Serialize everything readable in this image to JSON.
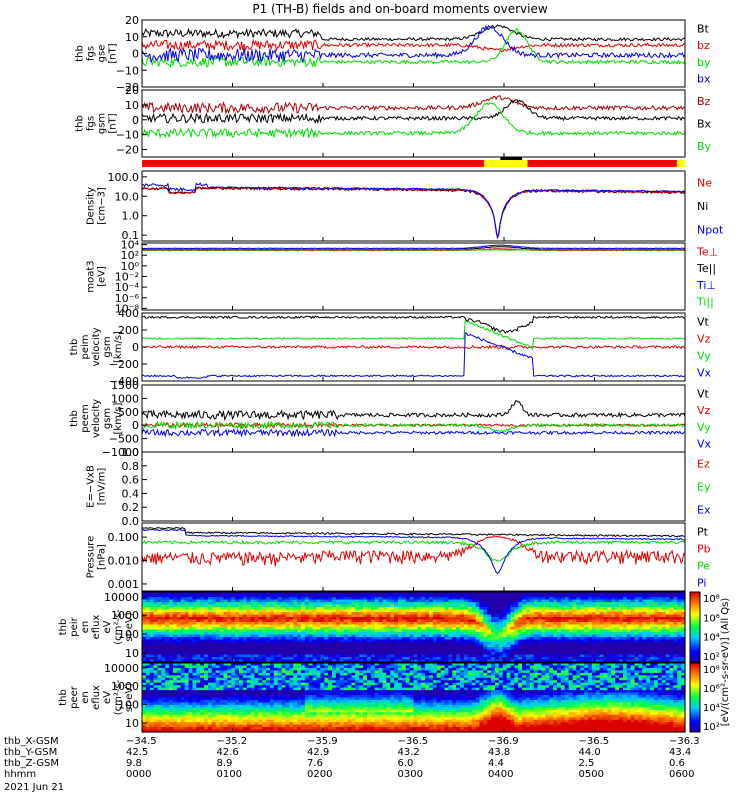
{
  "title": "P1 (TH-B) fields and on-board moments overview",
  "colors": {
    "black": "#000000",
    "red": "#e00000",
    "darkred": "#aa0000",
    "green": "#00dd00",
    "blue": "#0000ee",
    "yellow": "#ffff00"
  },
  "chart_data": [
    {
      "type": "line",
      "id": "fgs1",
      "ylabel_lines": [
        "thb",
        "fgs",
        "gse",
        "[nT]"
      ],
      "ylim": [
        -20,
        20
      ],
      "ticks": [
        "20",
        "10",
        "0",
        "−10",
        "−20"
      ],
      "series": [
        {
          "name": "Bt",
          "color": "#000000"
        },
        {
          "name": "bz",
          "color": "#e00000"
        },
        {
          "name": "by",
          "color": "#00dd00"
        },
        {
          "name": "bx",
          "color": "#0000ee"
        }
      ]
    },
    {
      "type": "line",
      "id": "fgs2",
      "ylabel_lines": [
        "thb",
        "fgs",
        "gsm",
        "[nT]"
      ],
      "ylim": [
        -25,
        20
      ],
      "ticks": [
        "20",
        "10",
        "0",
        "−10",
        "−20"
      ],
      "series": [
        {
          "name": "Bz",
          "color": "#aa0000"
        },
        {
          "name": "Bx",
          "color": "#000000"
        },
        {
          "name": "By",
          "color": "#00dd00"
        }
      ]
    },
    {
      "type": "line",
      "id": "density",
      "ylabel_lines": [
        "Density",
        "[cm−3]"
      ],
      "ylim": [
        0.05,
        200
      ],
      "log": true,
      "ticks": [
        "100.0",
        "10.0",
        "1.0",
        "0.1"
      ],
      "series": [
        {
          "name": "Ne",
          "color": "#e00000"
        },
        {
          "name": "Ni",
          "color": "#000000"
        },
        {
          "name": "Npot",
          "color": "#0000ee"
        }
      ]
    },
    {
      "type": "line",
      "id": "temp",
      "ylabel_lines": [
        "moat3",
        "[eV]"
      ],
      "log": true,
      "ticks": [
        "10⁴",
        "10²",
        "10⁰",
        "10⁻²",
        "10⁻⁴",
        "10⁻⁶",
        "10⁻⁸"
      ],
      "series": [
        {
          "name": "Te⊥",
          "color": "#e00000"
        },
        {
          "name": "Te||",
          "color": "#000000"
        },
        {
          "name": "Ti⊥",
          "color": "#0000ee"
        },
        {
          "name": "Ti||",
          "color": "#00dd00"
        }
      ]
    },
    {
      "type": "line",
      "id": "peim",
      "ylabel_lines": [
        "thb",
        "peim",
        "velocity",
        "gsm",
        "[km/s]"
      ],
      "ylim": [
        -400,
        400
      ],
      "ticks": [
        "400",
        "200",
        "0",
        "−200",
        "−400"
      ],
      "series": [
        {
          "name": "Vt",
          "color": "#000000"
        },
        {
          "name": "Vz",
          "color": "#e00000"
        },
        {
          "name": "Vy",
          "color": "#00dd00"
        },
        {
          "name": "Vx",
          "color": "#0000ee"
        }
      ]
    },
    {
      "type": "line",
      "id": "peem",
      "ylabel_lines": [
        "thb",
        "peem",
        "velocity",
        "gsm",
        "[km/s]"
      ],
      "ylim": [
        -1000,
        1500
      ],
      "ticks": [
        "1500",
        "1000",
        "500",
        "0",
        "−500",
        "−1000"
      ],
      "series": [
        {
          "name": "Vt",
          "color": "#000000"
        },
        {
          "name": "Vz",
          "color": "#e00000"
        },
        {
          "name": "Vy",
          "color": "#00dd00"
        },
        {
          "name": "Vx",
          "color": "#0000ee"
        }
      ]
    },
    {
      "type": "line",
      "id": "efield",
      "ylabel_lines": [
        "E=−VxB",
        "[mV/m]"
      ],
      "ylim": [
        0,
        1
      ],
      "ticks": [
        "1.0",
        "0.8",
        "0.6",
        "0.4",
        "0.2",
        "0.0"
      ],
      "series": [
        {
          "name": "Ez",
          "color": "#e00000"
        },
        {
          "name": "Ey",
          "color": "#00dd00"
        },
        {
          "name": "Ex",
          "color": "#0000ee"
        }
      ]
    },
    {
      "type": "line",
      "id": "pressure",
      "ylabel_lines": [
        "Pressure",
        "[nPa]"
      ],
      "ylim": [
        0.0005,
        0.4
      ],
      "log": true,
      "ticks": [
        "0.100",
        "0.010",
        "0.001"
      ],
      "series": [
        {
          "name": "Pt",
          "color": "#000000"
        },
        {
          "name": "Pb",
          "color": "#e00000"
        },
        {
          "name": "Pe",
          "color": "#00dd00"
        },
        {
          "name": "Pi",
          "color": "#0000ee"
        }
      ]
    },
    {
      "type": "heatmap",
      "id": "peir",
      "ylabel_lines": [
        "thb",
        "peir",
        "en",
        "eflux",
        "eV",
        "(cm²-s-",
        "sr-eV)"
      ],
      "ticks": [
        "10000",
        "1000",
        "100",
        "10"
      ]
    },
    {
      "type": "heatmap",
      "id": "peer",
      "ylabel_lines": [
        "thb",
        "peer",
        "en",
        "eflux",
        "eV",
        "(cm²-s-",
        "sr-eV)"
      ],
      "ticks": [
        "10000",
        "1000",
        "100",
        "10"
      ]
    }
  ],
  "colorbar": {
    "label": "[eV/(cm²-s-sr-eV)] (All Qs)",
    "ticks_top": [
      "10⁸",
      "10⁶",
      "10⁴",
      "10²"
    ],
    "ticks_bottom": [
      "10⁸",
      "10⁶",
      "10⁴",
      "10²"
    ]
  },
  "x_axis": {
    "row_labels": [
      "thb_X-GSM",
      "thb_Y-GSM",
      "thb_Z-GSM",
      "hhmm",
      "2021 Jun 21"
    ],
    "ticks": [
      {
        "x": "−34.5",
        "y": "42.5",
        "z": "9.8",
        "t": "0000"
      },
      {
        "x": "−35.2",
        "y": "42.6",
        "z": "8.9",
        "t": "0100"
      },
      {
        "x": "−35.9",
        "y": "42.9",
        "z": "7.6",
        "t": "0200"
      },
      {
        "x": "−36.5",
        "y": "43.2",
        "z": "6.0",
        "t": "0300"
      },
      {
        "x": "−36.9",
        "y": "43.8",
        "z": "4.4",
        "t": "0400"
      },
      {
        "x": "−36.5",
        "y": "44.0",
        "z": "2.5",
        "t": "0500"
      },
      {
        "x": "−36.3",
        "y": "43.4",
        "z": "0.6",
        "t": "0600"
      }
    ]
  }
}
